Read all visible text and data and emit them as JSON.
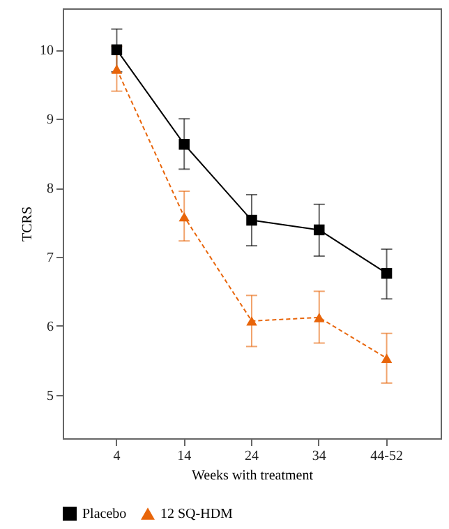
{
  "chart_data": {
    "type": "line",
    "xlabel": "Weeks with treatment",
    "ylabel": "TCRS",
    "categories": [
      "4",
      "14",
      "24",
      "34",
      "44-52"
    ],
    "series": [
      {
        "name": "Placebo",
        "color": "#000000",
        "marker": "square",
        "line_style": "solid",
        "values": [
          10.0,
          8.63,
          7.53,
          7.39,
          6.76
        ],
        "errors": [
          [
            9.68,
            10.3
          ],
          [
            8.27,
            9.0
          ],
          [
            7.16,
            7.9
          ],
          [
            7.01,
            7.76
          ],
          [
            6.39,
            7.11
          ]
        ]
      },
      {
        "name": "12 SQ-HDM",
        "color": "#e8650a",
        "marker": "triangle",
        "line_style": "dashed",
        "values": [
          9.72,
          7.58,
          6.07,
          6.12,
          5.53
        ],
        "errors": [
          [
            9.4,
            10.05
          ],
          [
            7.23,
            7.95
          ],
          [
            5.7,
            6.44
          ],
          [
            5.75,
            6.5
          ],
          [
            5.17,
            5.89
          ]
        ]
      }
    ],
    "ylim": [
      4.37,
      10.6
    ],
    "yticks": [
      5,
      6,
      7,
      8,
      9,
      10
    ],
    "grid": false,
    "legend": "bottom"
  }
}
